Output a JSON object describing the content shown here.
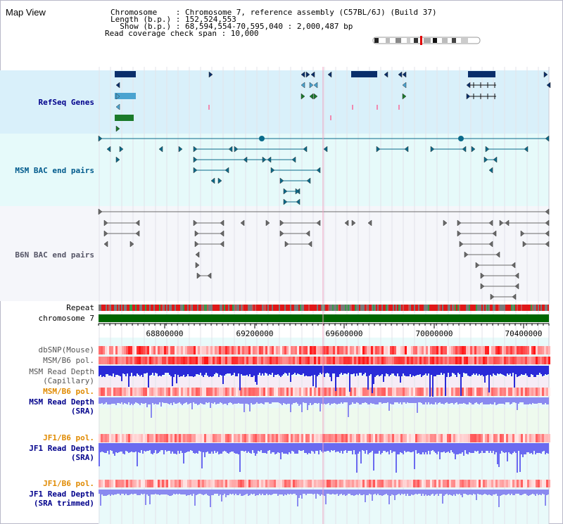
{
  "title": "Map View",
  "info": {
    "chromosome_line": "Chromosome    : Chromosome 7, reference assembly (C57BL/6J) (Build 37)",
    "length_line": "Length (b.p.) : 152,524,553",
    "show_line": "  Show (b.p.) : 68,594,554-70,595,040 : 2,000,487 bp",
    "coverage_line": "Read coverage check span : 10,000"
  },
  "tracks": {
    "refseq": "RefSeq Genes",
    "msm_bac": "MSM BAC end pairs",
    "b6n_bac": "B6N BAC end pairs",
    "repeat": "Repeat",
    "chromosome": "chromosome 7",
    "dbsnp": "dbSNP(Mouse)",
    "msm_b6_pol_1": "MSM/B6 pol.",
    "msm_depth_cap_1": "MSM Read Depth",
    "msm_depth_cap_2": "(Capillary)",
    "msm_b6_pol_2": "MSM/B6 pol.",
    "msm_depth_sra_1": "MSM Read Depth",
    "msm_depth_sra_2": "(SRA)",
    "jf1_b6_pol_1": "JF1/B6 pol.",
    "jf1_depth_sra_1": "JF1 Read Depth",
    "jf1_depth_sra_2": "(SRA)",
    "jf1_b6_pol_2": "JF1/B6 pol.",
    "jf1_depth_trim_1": "JF1 Read Depth",
    "jf1_depth_trim_2": "(SRA trimmed)"
  },
  "axis_ticks": [
    "68800000",
    "69200000",
    "69600000",
    "70000000",
    "70400000"
  ],
  "colors": {
    "refseq_bg": "#d9f0fa",
    "msm_bg": "#e6fafa",
    "b6n_bg": "#f5f6fa",
    "blue_label": "#00008b",
    "teal_label": "#005a8c",
    "gray_label": "#555566",
    "orange_label": "#e08a00",
    "chromosome_bar": "#006600",
    "depth_blue": "#2a2ad8",
    "depth_light": "#8a8af0"
  }
}
